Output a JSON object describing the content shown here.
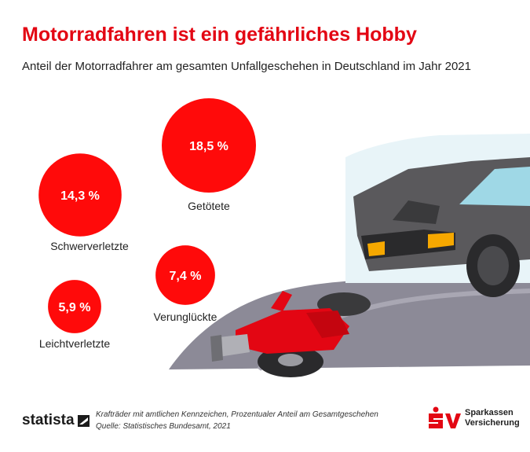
{
  "title": "Motorradfahren ist ein gefährliches Hobby",
  "subtitle": "Anteil der Motorradfahrer am gesamten Unfallgeschehen in Deutschland im Jahr 2021",
  "chart_data": {
    "type": "bubble",
    "unit": "%",
    "categories": [
      "Getötete",
      "Schwerverletzte",
      "Verunglückte",
      "Leichtverletzte"
    ],
    "values": [
      18.5,
      14.3,
      7.4,
      5.9
    ],
    "value_labels": [
      "18,5 %",
      "14,3 %",
      "7,4 %",
      "5,9 %"
    ],
    "color": "#ff0a0a"
  },
  "footer": {
    "brand": "statista",
    "note_line1": "Krafträder mit amtlichen Kennzeichen, Prozentualer Anteil am Gesamtgeschehen",
    "note_line2": "Quelle: Statistisches Bundesamt, 2021",
    "partner_line1": "Sparkassen",
    "partner_line2": "Versicherung"
  },
  "colors": {
    "accent": "#e30613",
    "road": "#8c8a97",
    "car": "#525154"
  }
}
